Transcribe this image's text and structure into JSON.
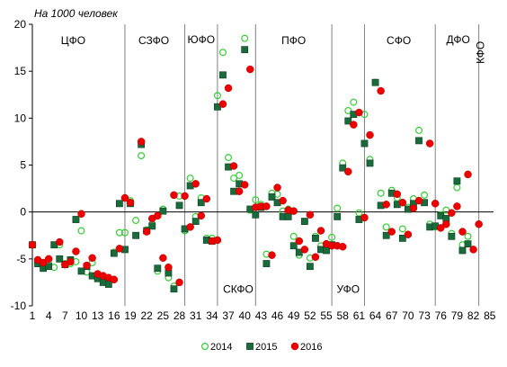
{
  "chart_data": {
    "type": "scatter",
    "unit_label": "На 1000 человек",
    "ylim": [
      -10,
      20
    ],
    "y_ticks": [
      20,
      15,
      10,
      5,
      0,
      -5,
      -10
    ],
    "xlim": [
      1,
      85
    ],
    "x_ticks": [
      1,
      4,
      7,
      10,
      13,
      16,
      19,
      22,
      25,
      28,
      31,
      34,
      37,
      40,
      43,
      46,
      49,
      52,
      55,
      58,
      61,
      64,
      67,
      70,
      73,
      76,
      79,
      82,
      85
    ],
    "separators": [
      18,
      29,
      35,
      42,
      56,
      62,
      75,
      83
    ],
    "regions": [
      {
        "label": "ЦФО",
        "x": 8.5,
        "y": 17.9,
        "vertical": false
      },
      {
        "label": "СЗФО",
        "x": 23.3,
        "y": 17.9,
        "vertical": false
      },
      {
        "label": "ЮФО",
        "x": 32.0,
        "y": 18.0,
        "vertical": false
      },
      {
        "label": "СКФО",
        "x": 38.8,
        "y": -8.6,
        "vertical": false
      },
      {
        "label": "ПФО",
        "x": 49.0,
        "y": 17.9,
        "vertical": false
      },
      {
        "label": "УФО",
        "x": 59.0,
        "y": -8.6,
        "vertical": false
      },
      {
        "label": "СФО",
        "x": 68.3,
        "y": 17.9,
        "vertical": false
      },
      {
        "label": "ДФО",
        "x": 79.2,
        "y": 18.0,
        "vertical": false
      },
      {
        "label": "КФО",
        "x": 84.0,
        "y": 17.0,
        "vertical": true
      }
    ],
    "series": [
      {
        "name": "2014",
        "marker": "open-circle",
        "color": "#33cc33",
        "values": [
          -3.5,
          -5.4,
          -5.8,
          -5.5,
          -5.9,
          -3.5,
          -5.5,
          -5.5,
          -5.3,
          -2.0,
          -6.4,
          -5.4,
          -6.8,
          -7.2,
          -7.5,
          -4.3,
          -2.2,
          -2.2,
          1.2,
          -0.9,
          6.0,
          -1.9,
          -1.3,
          -6.3,
          0.3,
          -7.0,
          -7.9,
          1.7,
          -2.0,
          3.6,
          -0.5,
          1.5,
          -2.8,
          -2.8,
          12.4,
          17.0,
          5.8,
          3.6,
          3.9,
          18.5,
          0.2,
          1.3,
          0.8,
          -4.5,
          2.0,
          1.9,
          0.1,
          0.3,
          -2.6,
          -4.6,
          -1.0,
          -4.9,
          -2.6,
          -3.6,
          -4.0,
          -2.7,
          0.4,
          5.2,
          10.8,
          11.7,
          -0.1,
          10.4,
          5.6,
          13.8,
          2.0,
          -1.6,
          2.3,
          1.5,
          -1.8,
          0.5,
          1.4,
          8.7,
          1.8,
          -1.3,
          -1.6,
          -0.3,
          0.2,
          -2.3,
          2.6,
          -3.5,
          -2.6
        ]
      },
      {
        "name": "2015",
        "marker": "square",
        "color": "#1a6b3c",
        "values": [
          -3.5,
          -5.5,
          -6.0,
          -5.8,
          -3.5,
          -5.0,
          -5.6,
          -5.1,
          -0.8,
          -6.3,
          -5.8,
          -6.8,
          -7.1,
          -7.5,
          -7.7,
          -4.4,
          0.9,
          -4.0,
          0.9,
          -2.5,
          7.2,
          -2.0,
          -1.5,
          -6.0,
          0.1,
          -6.5,
          -8.2,
          0.7,
          -1.8,
          2.8,
          -1.0,
          1.0,
          -3.0,
          -3.1,
          11.2,
          14.6,
          4.8,
          2.2,
          3.0,
          17.3,
          0.3,
          -0.3,
          0.5,
          -5.5,
          1.6,
          1.0,
          -0.5,
          -0.5,
          -3.6,
          -4.3,
          -1.0,
          -5.8,
          -2.8,
          -4.0,
          -4.1,
          -3.5,
          -0.5,
          4.7,
          9.7,
          10.4,
          -0.8,
          7.3,
          5.2,
          13.8,
          0.7,
          -2.5,
          2.0,
          0.8,
          -2.8,
          0.3,
          0.9,
          7.6,
          1.0,
          -1.6,
          -1.5,
          -0.4,
          -0.7,
          -2.6,
          3.3,
          -4.1,
          -3.4
        ]
      },
      {
        "name": "2016",
        "marker": "filled-circle",
        "color": "#ee0000",
        "values": [
          -3.5,
          -5.1,
          -5.4,
          -5.0,
          -3.2,
          -5.6,
          -5.3,
          -4.2,
          -0.2,
          -5.7,
          -4.9,
          -6.6,
          -6.8,
          -7.0,
          -7.2,
          -3.9,
          1.5,
          1.0,
          7.5,
          -2.1,
          -0.7,
          -0.4,
          -4.9,
          1.8,
          -5.9,
          -7.5,
          1.7,
          -1.6,
          3.0,
          -0.4,
          1.4,
          -3.1,
          -3.0,
          11.5,
          13.2,
          4.9,
          2.2,
          2.9,
          15.2,
          0.5,
          0.6,
          0.6,
          -4.6,
          2.6,
          1.2,
          0.2,
          0.1,
          -3.1,
          -4.0,
          -0.3,
          -4.8,
          -2.0,
          -3.4,
          -3.6,
          -3.6,
          -3.7,
          4.3,
          9.3,
          10.6,
          -0.6,
          8.2,
          12.9,
          0.8,
          -2.1,
          1.9,
          1.0,
          -2.4,
          0.4,
          1.2,
          7.3,
          0.9,
          -1.7,
          -1.3,
          -0.1,
          0.6,
          -2.1,
          4.0,
          -4.0,
          -1.3
        ],
        "x_offset": [
          1,
          2,
          3,
          4,
          6,
          7,
          8,
          9,
          10,
          11,
          12,
          13,
          14,
          15,
          16,
          17,
          18,
          19,
          21,
          22,
          23,
          24,
          25,
          27,
          26,
          28,
          29,
          30,
          31,
          32,
          33,
          34,
          35,
          36,
          37,
          38,
          39,
          40,
          41,
          42,
          43,
          44,
          45,
          46,
          47,
          48,
          49,
          50,
          51,
          52,
          53,
          54,
          55,
          56,
          57,
          58,
          59,
          60,
          61,
          62,
          63,
          65,
          66,
          67,
          68,
          69,
          70,
          71,
          72,
          74,
          75,
          76,
          77,
          78,
          79,
          80,
          81,
          82,
          83
        ]
      }
    ],
    "legend": {
      "placement": "bottom-center",
      "entries": [
        "2014",
        "2015",
        "2016"
      ]
    }
  }
}
